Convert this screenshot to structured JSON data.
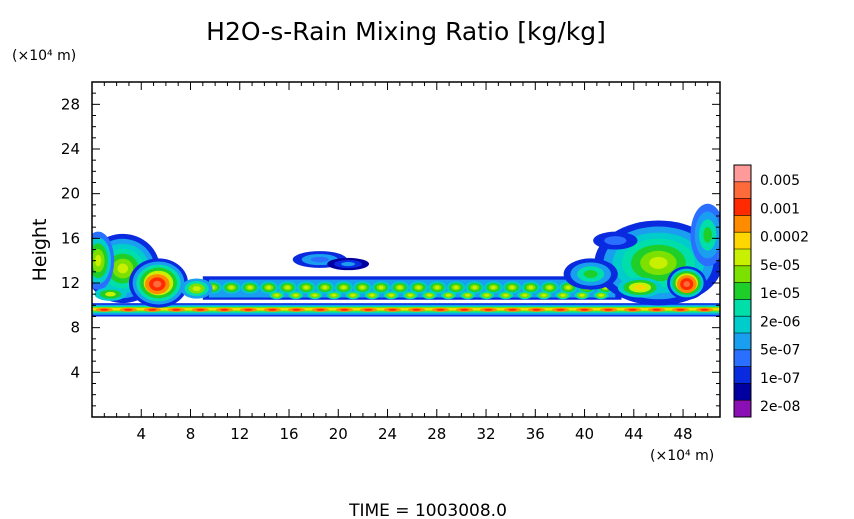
{
  "chart_data": {
    "type": "heatmap",
    "title": "H2O-s-Rain Mixing Ratio [kg/kg]",
    "ylabel": "Height",
    "xlabel": "",
    "x_unit_label": "(×10⁴ m)",
    "y_unit_label": "(×10⁴ m)",
    "x_ticks": [
      "4",
      "8",
      "12",
      "16",
      "20",
      "24",
      "28",
      "32",
      "36",
      "40",
      "44",
      "48"
    ],
    "x_tick_values": [
      4,
      8,
      12,
      16,
      20,
      24,
      28,
      32,
      36,
      40,
      44,
      48
    ],
    "y_ticks": [
      "4",
      "8",
      "12",
      "16",
      "20",
      "24",
      "28"
    ],
    "y_tick_values": [
      4,
      8,
      12,
      16,
      20,
      24,
      28
    ],
    "xlim": [
      0,
      51
    ],
    "ylim": [
      0,
      30
    ],
    "grid": false,
    "colorbar": {
      "colors": [
        "#ff9a9a",
        "#ff6a3a",
        "#ff2a00",
        "#ff8c00",
        "#ffd700",
        "#c8f000",
        "#7ce000",
        "#1ecf2a",
        "#00dfaa",
        "#00cccc",
        "#1a9ff0",
        "#2a6fff",
        "#0a2ae0",
        "#0000a0",
        "#8a0fb5"
      ],
      "labels": [
        "0.005",
        "0.001",
        "0.0002",
        "5e-05",
        "1e-05",
        "2e-06",
        "5e-07",
        "1e-07",
        "2e-08"
      ]
    },
    "layers": [
      {
        "level": "low",
        "description": "precip layer",
        "x_range": [
          0,
          51
        ],
        "y_range": [
          9.0,
          10.2
        ],
        "max_level": 3
      },
      {
        "level": "mid",
        "description": "left cell",
        "x_range": [
          0,
          8
        ],
        "y_range": [
          10.5,
          16.5
        ],
        "max_level": 1
      },
      {
        "level": "mid",
        "description": "right cell",
        "x_range": [
          40,
          51
        ],
        "y_range": [
          10.2,
          19.0
        ],
        "max_level": 1
      },
      {
        "level": "weak",
        "description": "detached cloud",
        "x_range": [
          16.5,
          21.5
        ],
        "y_range": [
          13.0,
          14.5
        ],
        "max_level": 9
      },
      {
        "level": "weak",
        "description": "upper band",
        "x_range": [
          9,
          43
        ],
        "y_range": [
          10.5,
          12.6
        ],
        "max_level": 5
      }
    ]
  },
  "time_label": "TIME  =  1003008.0"
}
